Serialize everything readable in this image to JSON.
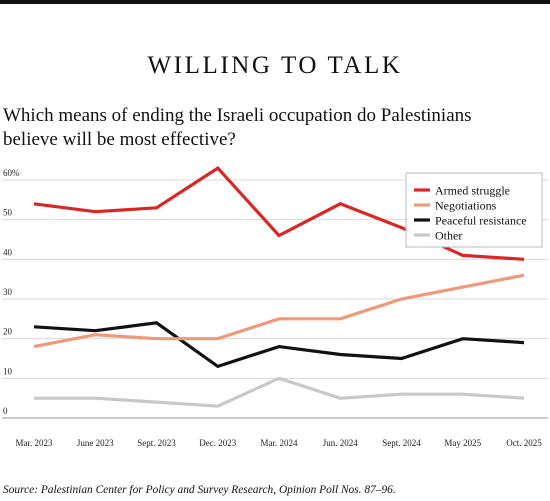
{
  "header": {
    "title": "WILLING TO TALK",
    "question": "Which means of ending the Israeli occupation do Palestinians believe will be most effective?"
  },
  "source": "Source: Palestinian Center for Policy and Survey Research, Opinion Poll Nos. 87–96.",
  "chart_data": {
    "type": "line",
    "title": "WILLING TO TALK",
    "subtitle": "Which means of ending the Israeli occupation do Palestinians believe will be most effective?",
    "x": [
      "Mar. 2023",
      "June 2023",
      "Sept. 2023",
      "Dec. 2023",
      "Mar. 2024",
      "Jun. 2024",
      "Sept. 2024",
      "May 2025",
      "Oct. 2025"
    ],
    "yticks": [
      0,
      10,
      20,
      30,
      40,
      50,
      60
    ],
    "ytick_labels": [
      "0",
      "10",
      "20",
      "30",
      "40",
      "50",
      "60%"
    ],
    "ylim": [
      0,
      60
    ],
    "grid": "horizontal",
    "legend_position": "top-right",
    "series": [
      {
        "name": "Armed struggle",
        "color": "#dc2626",
        "values": [
          54,
          52,
          53,
          63,
          46,
          54,
          48,
          41,
          40
        ]
      },
      {
        "name": "Negotiations",
        "color": "#f0987a",
        "values": [
          18,
          21,
          20,
          20,
          25,
          25,
          30,
          33,
          36
        ]
      },
      {
        "name": "Peaceful resistance",
        "color": "#111111",
        "values": [
          23,
          22,
          24,
          13,
          18,
          16,
          15,
          20,
          19
        ]
      },
      {
        "name": "Other",
        "color": "#c8c8c8",
        "values": [
          5,
          5,
          4,
          3,
          10,
          5,
          6,
          6,
          5
        ]
      }
    ]
  }
}
